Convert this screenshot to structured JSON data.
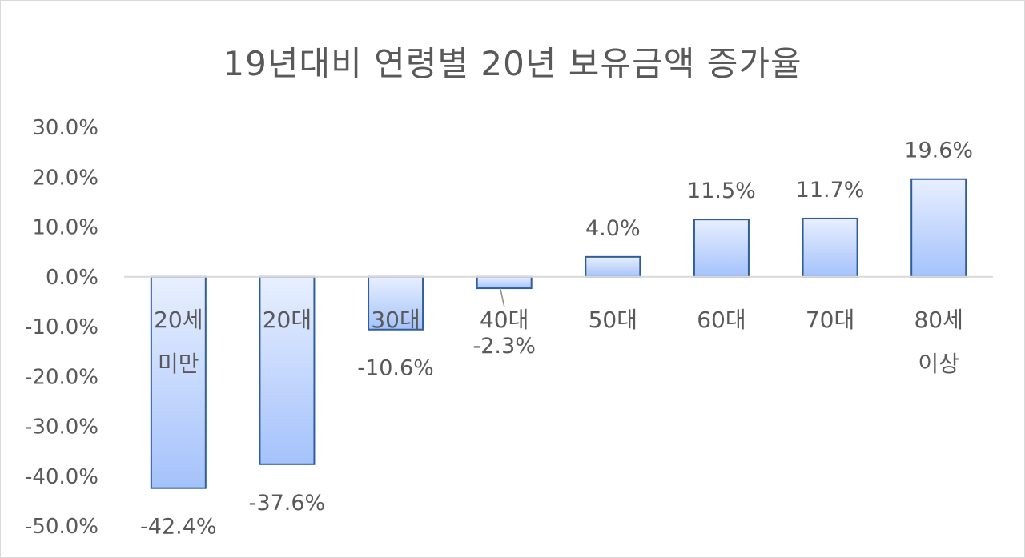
{
  "chart_data": {
    "type": "bar",
    "title": "19년대비 연령별 20년 보유금액 증가율",
    "categories": [
      [
        "20세",
        "미만"
      ],
      [
        "20대"
      ],
      [
        "30대"
      ],
      [
        "40대"
      ],
      [
        "50대"
      ],
      [
        "60대"
      ],
      [
        "70대"
      ],
      [
        "80세",
        "이상"
      ]
    ],
    "values": [
      -42.4,
      -37.6,
      -10.6,
      -2.3,
      4.0,
      11.5,
      11.7,
      19.6
    ],
    "data_labels": [
      "-42.4%",
      "-37.6%",
      "-10.6%",
      "-2.3%",
      "4.0%",
      "11.5%",
      "11.7%",
      "19.6%"
    ],
    "y_ticks": [
      "30.0%",
      "20.0%",
      "10.0%",
      "0.0%",
      "-10.0%",
      "-20.0%",
      "-30.0%",
      "-40.0%",
      "-50.0%"
    ],
    "ylim": [
      -50,
      30
    ],
    "grid": false,
    "legend": "none",
    "colors": {
      "bar_top": "#e8efff",
      "bar_bottom": "#a4c2fb",
      "bar_border": "#2e5f9c",
      "axis": "#d9d9d9",
      "text": "#595959"
    }
  }
}
